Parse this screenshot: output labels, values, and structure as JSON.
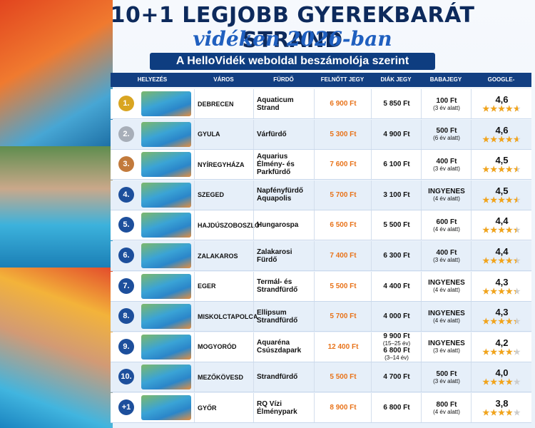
{
  "header": {
    "title": "10+1 LEGJOBB GYEREKBARÁT STRAND",
    "subtitle": "vidéken 2026-ban",
    "banner": "A HelloVidék weboldal beszámolója szerint"
  },
  "table": {
    "columns": [
      "HELYEZÉS",
      "VÁROS",
      "FÜRDŐ",
      "FELNŐTT JEGY",
      "DIÁK JEGY",
      "BABAJEGY",
      "GOOGLE-ÉRTÉKELÉS"
    ],
    "rows": [
      {
        "rank": "1.",
        "city": "DEBRECEN",
        "bath": "Aquaticum Strand",
        "adult": "6 900 Ft",
        "student": [
          "5 850 Ft"
        ],
        "baby": [
          "100 Ft",
          "(3 év alatt)"
        ],
        "rating": {
          "value": 4.6,
          "label": "4,6"
        }
      },
      {
        "rank": "2.",
        "city": "GYULA",
        "bath": "Várfürdő",
        "adult": "5 300 Ft",
        "student": [
          "4 900 Ft"
        ],
        "baby": [
          "500 Ft",
          "(6 év alatt)"
        ],
        "rating": {
          "value": 4.6,
          "label": "4,6"
        }
      },
      {
        "rank": "3.",
        "city": "NYÍREGYHÁZA",
        "bath": "Aquarius Élmény- és Parkfürdő",
        "adult": "7 600 Ft",
        "student": [
          "6 100 Ft"
        ],
        "baby": [
          "400 Ft",
          "(3 év alatt)"
        ],
        "rating": {
          "value": 4.5,
          "label": "4,5"
        }
      },
      {
        "rank": "4.",
        "city": "SZEGED",
        "bath": "Napfényfürdő Aquapolis",
        "adult": "5 700 Ft",
        "student": [
          "3 100 Ft"
        ],
        "baby": [
          "INGYENES",
          "(4 év alatt)"
        ],
        "rating": {
          "value": 4.5,
          "label": "4,5"
        }
      },
      {
        "rank": "5.",
        "city": "HAJDÚSZOBOSZLÓ",
        "bath": "Hungarospa",
        "adult": "6 500 Ft",
        "student": [
          "5 500 Ft"
        ],
        "baby": [
          "600 Ft",
          "(4 év alatt)"
        ],
        "rating": {
          "value": 4.4,
          "label": "4,4"
        }
      },
      {
        "rank": "6.",
        "city": "ZALAKAROS",
        "bath": "Zalakarosi Fürdő",
        "adult": "7 400 Ft",
        "student": [
          "6 300 Ft"
        ],
        "baby": [
          "400 Ft",
          "(3 év alatt)"
        ],
        "rating": {
          "value": 4.4,
          "label": "4,4"
        }
      },
      {
        "rank": "7.",
        "city": "EGER",
        "bath": "Termál- és Strandfürdő",
        "adult": "5 500 Ft",
        "student": [
          "4 400 Ft"
        ],
        "baby": [
          "INGYENES",
          "(4 év alatt)"
        ],
        "rating": {
          "value": 4.3,
          "label": "4,3"
        }
      },
      {
        "rank": "8.",
        "city": "MISKOLCTAPOLCA",
        "bath": "Ellipsum Strandfürdő",
        "adult": "5 700 Ft",
        "student": [
          "4 000 Ft"
        ],
        "baby": [
          "INGYENES",
          "(4 év alatt)"
        ],
        "rating": {
          "value": 4.3,
          "label": "4,3"
        }
      },
      {
        "rank": "9.",
        "city": "MOGYORÓD",
        "bath": "Aquaréna Csúszdapark",
        "adult": "12 400 Ft",
        "student": [
          "9 900 Ft",
          "(15–25 év)",
          "6 800 Ft",
          "(3–14 év)"
        ],
        "baby": [
          "INGYENES",
          "(3 év alatt)"
        ],
        "rating": {
          "value": 4.2,
          "label": "4,2"
        }
      },
      {
        "rank": "10.",
        "city": "MEZŐKÖVESD",
        "bath": "Strandfürdő",
        "adult": "5 500 Ft",
        "student": [
          "4 700 Ft"
        ],
        "baby": [
          "500 Ft",
          "(3 év alatt)"
        ],
        "rating": {
          "value": 4.0,
          "label": "4,0"
        }
      },
      {
        "rank": "+1",
        "city": "GYŐR",
        "bath": "RQ Vízi Élménypark",
        "adult": "8 900 Ft",
        "student": [
          "6 800 Ft"
        ],
        "baby": [
          "800 Ft",
          "(4 év alatt)"
        ],
        "rating": {
          "value": 3.8,
          "label": "3,8"
        }
      }
    ]
  }
}
